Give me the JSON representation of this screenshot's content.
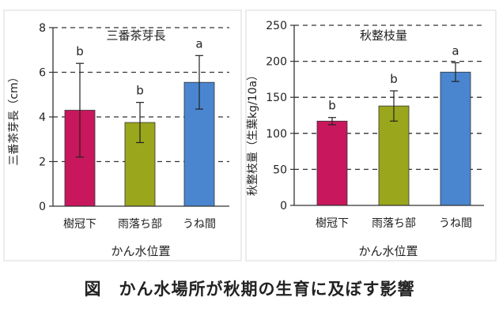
{
  "chart_data": [
    {
      "type": "bar",
      "title": "三番茶芽長",
      "ylabel": "三番茶芽長（cm）",
      "xlabel": "かん水位置",
      "categories": [
        "樹冠下",
        "雨落ち部",
        "うね間"
      ],
      "values": [
        4.3,
        3.75,
        5.55
      ],
      "error": [
        2.1,
        0.9,
        1.2
      ],
      "letters": [
        "b",
        "b",
        "a"
      ],
      "colors": [
        "#c8175d",
        "#9aa61c",
        "#4a86d0"
      ],
      "ylim": [
        0,
        8
      ],
      "yticks": [
        "0",
        "2",
        "4",
        "6",
        "8"
      ],
      "grid": true
    },
    {
      "type": "bar",
      "title": "秋整枝量",
      "ylabel": "秋整枝量（生葉kg/10a）",
      "xlabel": "かん水位置",
      "categories": [
        "樹冠下",
        "雨落ち部",
        "うね間"
      ],
      "values": [
        117,
        138,
        185
      ],
      "error": [
        5,
        21,
        13
      ],
      "letters": [
        "b",
        "b",
        "a"
      ],
      "colors": [
        "#c8175d",
        "#9aa61c",
        "#4a86d0"
      ],
      "ylim": [
        0,
        250
      ],
      "yticks": [
        "0",
        "50",
        "100",
        "150",
        "200",
        "250"
      ],
      "grid": true
    }
  ],
  "caption": "図　かん水場所が秋期の生育に及ぼす影響"
}
